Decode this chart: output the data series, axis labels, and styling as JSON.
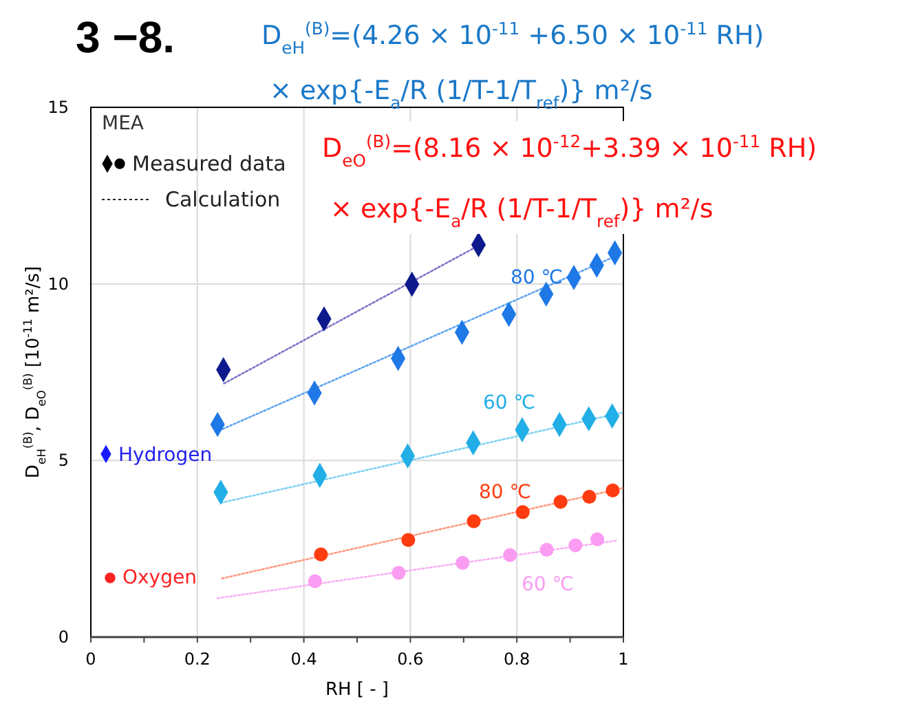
{
  "chart_data": {
    "type": "scatter",
    "title": "3 −8.",
    "xlabel": "RH [ - ]",
    "ylabel": "D$_{eH}$$^{(B)}$, D$_{eO}$$^{(B)}$ [10$^{-11}$ m²/s]",
    "legend_title": "MEA",
    "xlim": [
      0,
      1
    ],
    "ylim": [
      0,
      15
    ],
    "xticks": [
      0,
      {
        "value": 0.1,
        "label": null
      },
      0.2,
      {
        "value": 0.3,
        "label": null
      },
      0.4,
      {
        "value": 0.5,
        "label": null
      },
      0.6,
      {
        "value": 0.7,
        "label": null
      },
      0.8,
      {
        "value": 0.9,
        "label": null
      },
      1
    ],
    "yticks": [
      0,
      5,
      10,
      15
    ],
    "grid": true,
    "annotations": [
      "D$_{eH}$$^{(B)}$=(4.26 × 10$^{-11}$ +6.50 × 10$^{-11}$ RH)",
      "× exp{-E$_{a}$/R (1/T-1/T$_{ref}$)} m²/s",
      "D$_{eO}$$^{(B)}$=(8.16 × 10$^{-12}$+3.39 × 10$^{-11}$ RH)",
      "× exp{-E$_{a}$/R (1/T-1/T$_{ref}$)} m²/s",
      "Measured data",
      "Calculation",
      "Hydrogen",
      "Oxygen",
      "80 ℃",
      "60 ℃",
      "80 ℃",
      "60 ℃"
    ],
    "series": [
      {
        "type": "line",
        "color": "#7a74c8",
        "line_style": "dotted",
        "marker": "none",
        "x": [
          0.25,
          0.73
        ],
        "values": [
          7.18,
          11.1
        ]
      },
      {
        "color": "#0c1a8c",
        "marker": "diamond",
        "x": [
          0.249,
          0.438,
          0.603,
          0.728
        ],
        "values": [
          7.57,
          9.01,
          9.99,
          11.11
        ]
      },
      {
        "type": "line",
        "color": "#5ea4f0",
        "line_style": "dotted",
        "marker": "none",
        "x": [
          0.24,
          0.98
        ],
        "values": [
          5.84,
          10.75
        ]
      },
      {
        "color": "#1e78e6",
        "marker": "diamond",
        "x": [
          0.238,
          0.42,
          0.577,
          0.697,
          0.785,
          0.855,
          0.907,
          0.95,
          0.984
        ],
        "values": [
          6.02,
          6.91,
          7.89,
          8.63,
          9.14,
          9.71,
          10.18,
          10.53,
          10.88
        ]
      },
      {
        "type": "line",
        "color": "#7fd2f2",
        "line_style": "dotted",
        "marker": "none",
        "x": [
          0.244,
          0.999
        ],
        "values": [
          3.8,
          6.36
        ]
      },
      {
        "color": "#22aee6",
        "marker": "diamond",
        "x": [
          0.244,
          0.43,
          0.595,
          0.718,
          0.81,
          0.88,
          0.935,
          0.979
        ],
        "values": [
          4.1,
          4.58,
          5.13,
          5.5,
          5.87,
          6.02,
          6.18,
          6.26
        ]
      },
      {
        "type": "line",
        "color": "#ff9a80",
        "line_style": "dotted",
        "marker": "none",
        "x": [
          0.246,
          0.999
        ],
        "values": [
          1.66,
          4.22
        ]
      },
      {
        "color": "#ff3c10",
        "marker": "circle",
        "x": [
          0.432,
          0.596,
          0.719,
          0.811,
          0.882,
          0.936,
          0.98
        ],
        "values": [
          2.34,
          2.75,
          3.28,
          3.54,
          3.83,
          3.97,
          4.15
        ]
      },
      {
        "type": "line",
        "color": "#f8b0f4",
        "line_style": "dotted",
        "marker": "none",
        "x": [
          0.238,
          0.986
        ],
        "values": [
          1.1,
          2.73
        ]
      },
      {
        "color": "#f99cf2",
        "marker": "circle",
        "x": [
          0.421,
          0.578,
          0.698,
          0.787,
          0.856,
          0.91,
          0.951
        ],
        "values": [
          1.58,
          1.82,
          2.1,
          2.32,
          2.47,
          2.6,
          2.77
        ]
      }
    ]
  }
}
